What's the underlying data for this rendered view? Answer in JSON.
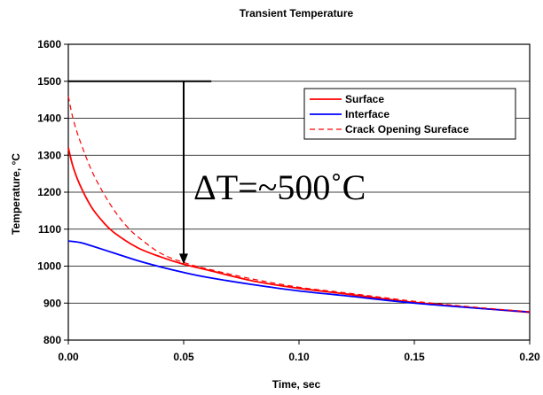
{
  "chart_data": {
    "type": "line",
    "title": "Transient Temperature",
    "xlabel": "Time, sec",
    "ylabel": "Temperature, °C",
    "xlim": [
      0,
      0.2
    ],
    "ylim": [
      800,
      1600
    ],
    "xticks": [
      "0.00",
      "0.05",
      "0.10",
      "0.15",
      "0.20"
    ],
    "yticks": [
      "800",
      "900",
      "1000",
      "1100",
      "1200",
      "1300",
      "1400",
      "1500",
      "1600"
    ],
    "grid": "horizontal",
    "legend_position": "top-right",
    "series": [
      {
        "name": "Surface",
        "color": "#ff0000",
        "dash": "solid",
        "x": [
          0,
          0.002,
          0.005,
          0.01,
          0.015,
          0.02,
          0.03,
          0.04,
          0.05,
          0.06,
          0.08,
          0.1,
          0.12,
          0.15,
          0.18,
          0.2
        ],
        "y": [
          1320,
          1270,
          1220,
          1160,
          1120,
          1090,
          1050,
          1025,
          1005,
          990,
          960,
          940,
          925,
          902,
          885,
          875
        ]
      },
      {
        "name": "Interface",
        "color": "#0000ff",
        "dash": "solid",
        "x": [
          0,
          0.005,
          0.01,
          0.02,
          0.03,
          0.04,
          0.05,
          0.06,
          0.08,
          0.1,
          0.12,
          0.15,
          0.18,
          0.2
        ],
        "y": [
          1068,
          1064,
          1055,
          1035,
          1015,
          998,
          983,
          970,
          950,
          933,
          920,
          900,
          885,
          876
        ]
      },
      {
        "name": "Crack Opening Sureface",
        "color": "#ff0000",
        "dash": "dashed",
        "x": [
          0,
          0.002,
          0.005,
          0.01,
          0.015,
          0.02,
          0.025,
          0.03,
          0.04,
          0.05,
          0.06,
          0.08,
          0.1,
          0.12,
          0.15,
          0.18,
          0.2
        ],
        "y": [
          1460,
          1400,
          1340,
          1260,
          1200,
          1150,
          1110,
          1080,
          1035,
          1010,
          993,
          965,
          943,
          928,
          905,
          887,
          877
        ]
      }
    ],
    "annotations": {
      "text": "ΔT=~500˚C",
      "reference_line_y": 1500,
      "reference_line_x": [
        0,
        0.062
      ],
      "arrow_x": 0.05,
      "arrow_from_y": 1500,
      "arrow_to_y": 1005
    }
  }
}
